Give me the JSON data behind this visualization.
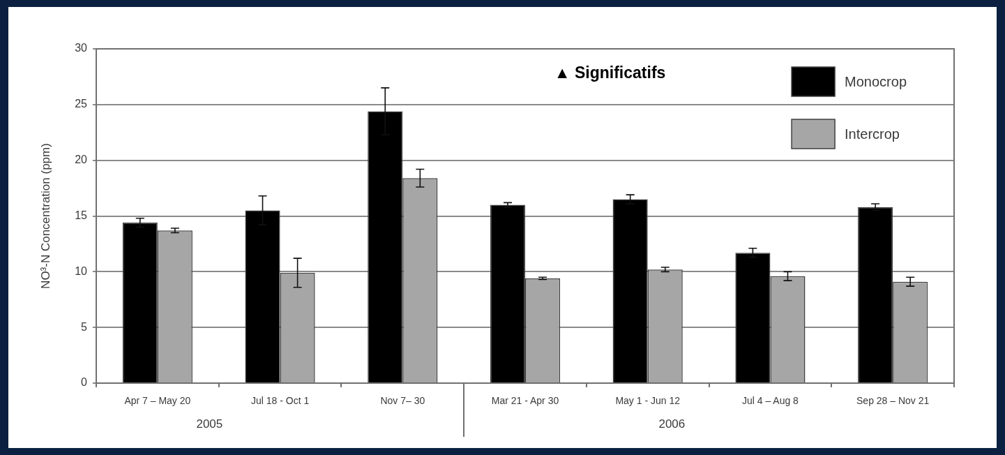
{
  "chart_data": {
    "type": "bar",
    "ylabel": "NO³-N Concentration (ppm)",
    "categories": [
      "Apr 7 – May 20",
      "Jul 18 - Oct 1",
      "Nov 7– 30",
      "Mar 21 - Apr 30",
      "May 1 - Jun 12",
      "Jul 4 – Aug 8",
      "Sep 28 – Nov 21"
    ],
    "series": [
      {
        "name": "Monocrop",
        "color": "#000000",
        "values": [
          14.4,
          15.5,
          24.4,
          16.0,
          16.5,
          11.7,
          15.8
        ],
        "errors": [
          0.4,
          1.3,
          2.1,
          0.2,
          0.4,
          0.4,
          0.3
        ]
      },
      {
        "name": "Intercrop",
        "color": "#a6a6a6",
        "values": [
          13.7,
          9.9,
          18.4,
          9.4,
          10.2,
          9.6,
          9.1
        ],
        "errors": [
          0.2,
          1.3,
          0.8,
          0.1,
          0.2,
          0.4,
          0.4
        ]
      }
    ],
    "ylim": [
      0,
      30
    ],
    "yticks": [
      0,
      5,
      10,
      15,
      20,
      25,
      30
    ],
    "grid": "y",
    "legend": "top right",
    "annotations": [
      "▲ Significatifs",
      "2005",
      "2006"
    ]
  }
}
